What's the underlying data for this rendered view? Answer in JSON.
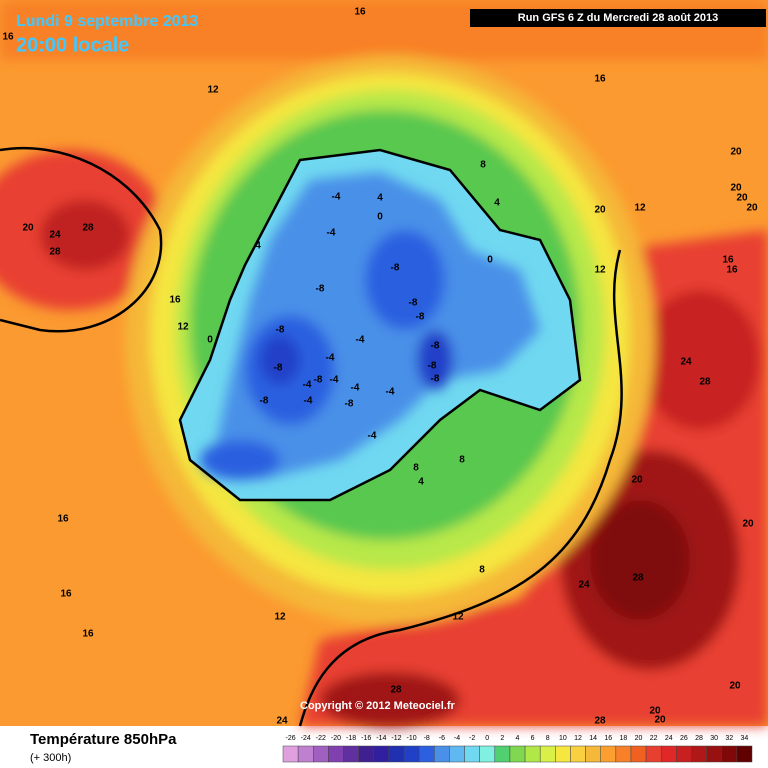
{
  "header": {
    "date": "Lundi 9 septembre 2013",
    "time": "20:00 locale",
    "run": "Run GFS 6 Z du Mercredi 28 août 2013"
  },
  "map": {
    "copyright": "Copyright © 2012 Meteociel.fr",
    "labels": [
      16,
      16,
      12,
      16,
      28,
      24,
      20,
      28,
      20,
      20,
      20,
      20,
      20,
      12,
      16,
      16,
      12,
      8,
      4,
      4,
      0,
      0,
      -4,
      -4,
      4,
      -8,
      -8,
      -8,
      -8,
      16,
      12,
      0,
      -8,
      -4,
      -8,
      -8,
      -8,
      -8,
      -4,
      -8,
      -4,
      -4,
      -4,
      -4,
      -4,
      -8,
      -8,
      -4,
      8,
      4,
      8,
      24,
      28,
      20,
      20,
      28,
      24,
      16,
      16,
      16,
      12,
      12,
      8,
      28,
      24,
      28,
      20,
      20,
      20
    ]
  },
  "footer": {
    "title": "Température 850hPa",
    "subtitle": "(+ 300h)"
  },
  "legend": {
    "ticks": [
      -26,
      -24,
      -22,
      -20,
      -18,
      -16,
      -14,
      -12,
      -10,
      -8,
      -6,
      -4,
      -2,
      0,
      2,
      4,
      6,
      8,
      10,
      12,
      14,
      16,
      18,
      20,
      22,
      24,
      26,
      28,
      30,
      32,
      34
    ],
    "colors": [
      "#e0a0e0",
      "#c080d0",
      "#a060c0",
      "#8040b0",
      "#6030a0",
      "#402090",
      "#3020a0",
      "#2030b0",
      "#2040c8",
      "#2c60e0",
      "#4a90e8",
      "#60b8f0",
      "#70d8f0",
      "#80f0e0",
      "#50d070",
      "#80d850",
      "#b0e848",
      "#d8f048",
      "#f5e640",
      "#f8d040",
      "#f5b838",
      "#fba030",
      "#f88028",
      "#f06020",
      "#e84030",
      "#e02828",
      "#c82020",
      "#b01818",
      "#981010",
      "#800808",
      "#600000"
    ]
  }
}
